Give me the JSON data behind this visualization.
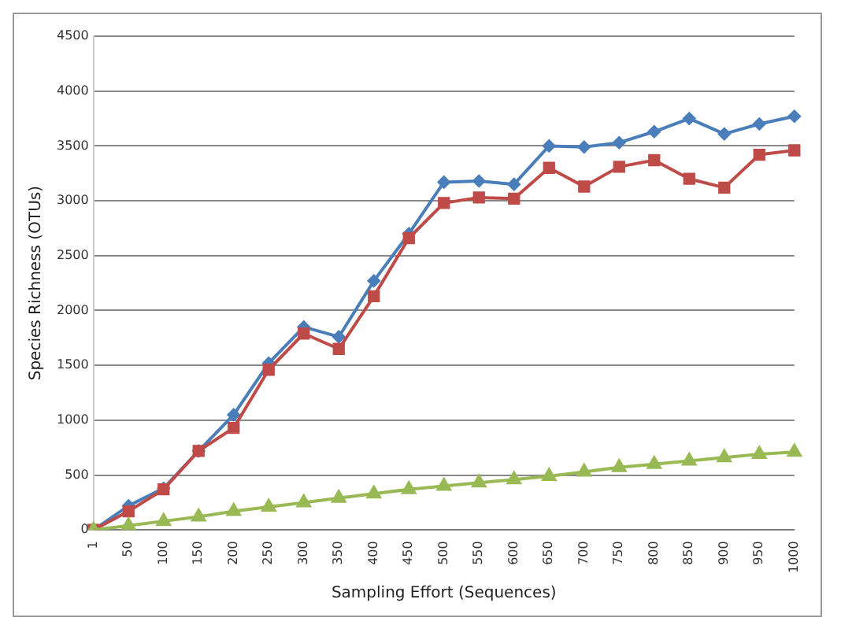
{
  "chart_data": {
    "type": "line",
    "xlabel": "Sampling Effort (Sequences)",
    "ylabel": "Species Richness (OTUs)",
    "categories": [
      "1",
      "50",
      "100",
      "150",
      "200",
      "250",
      "300",
      "350",
      "400",
      "450",
      "500",
      "550",
      "600",
      "650",
      "700",
      "750",
      "800",
      "850",
      "900",
      "950",
      "1000"
    ],
    "series": [
      {
        "color": "#4a7ebb",
        "marker": "diamond",
        "values": [
          0,
          220,
          380,
          720,
          1050,
          1520,
          1850,
          1760,
          2270,
          2700,
          3170,
          3180,
          3150,
          3500,
          3490,
          3530,
          3630,
          3750,
          3610,
          3700,
          3770
        ]
      },
      {
        "color": "#be4b48",
        "marker": "square",
        "values": [
          0,
          170,
          370,
          720,
          930,
          1460,
          1790,
          1650,
          2130,
          2660,
          2980,
          3030,
          3020,
          3300,
          3130,
          3310,
          3370,
          3200,
          3120,
          3420,
          3460
        ]
      },
      {
        "color": "#98b954",
        "marker": "triangle",
        "values": [
          0,
          40,
          80,
          120,
          170,
          210,
          250,
          290,
          330,
          370,
          400,
          430,
          460,
          490,
          530,
          570,
          600,
          630,
          660,
          690,
          710
        ]
      }
    ],
    "ylim": [
      0,
      4500
    ],
    "yticks": [
      0,
      500,
      1000,
      1500,
      2000,
      2500,
      3000,
      3500,
      4000,
      4500
    ],
    "grid": "y",
    "legend": false
  }
}
